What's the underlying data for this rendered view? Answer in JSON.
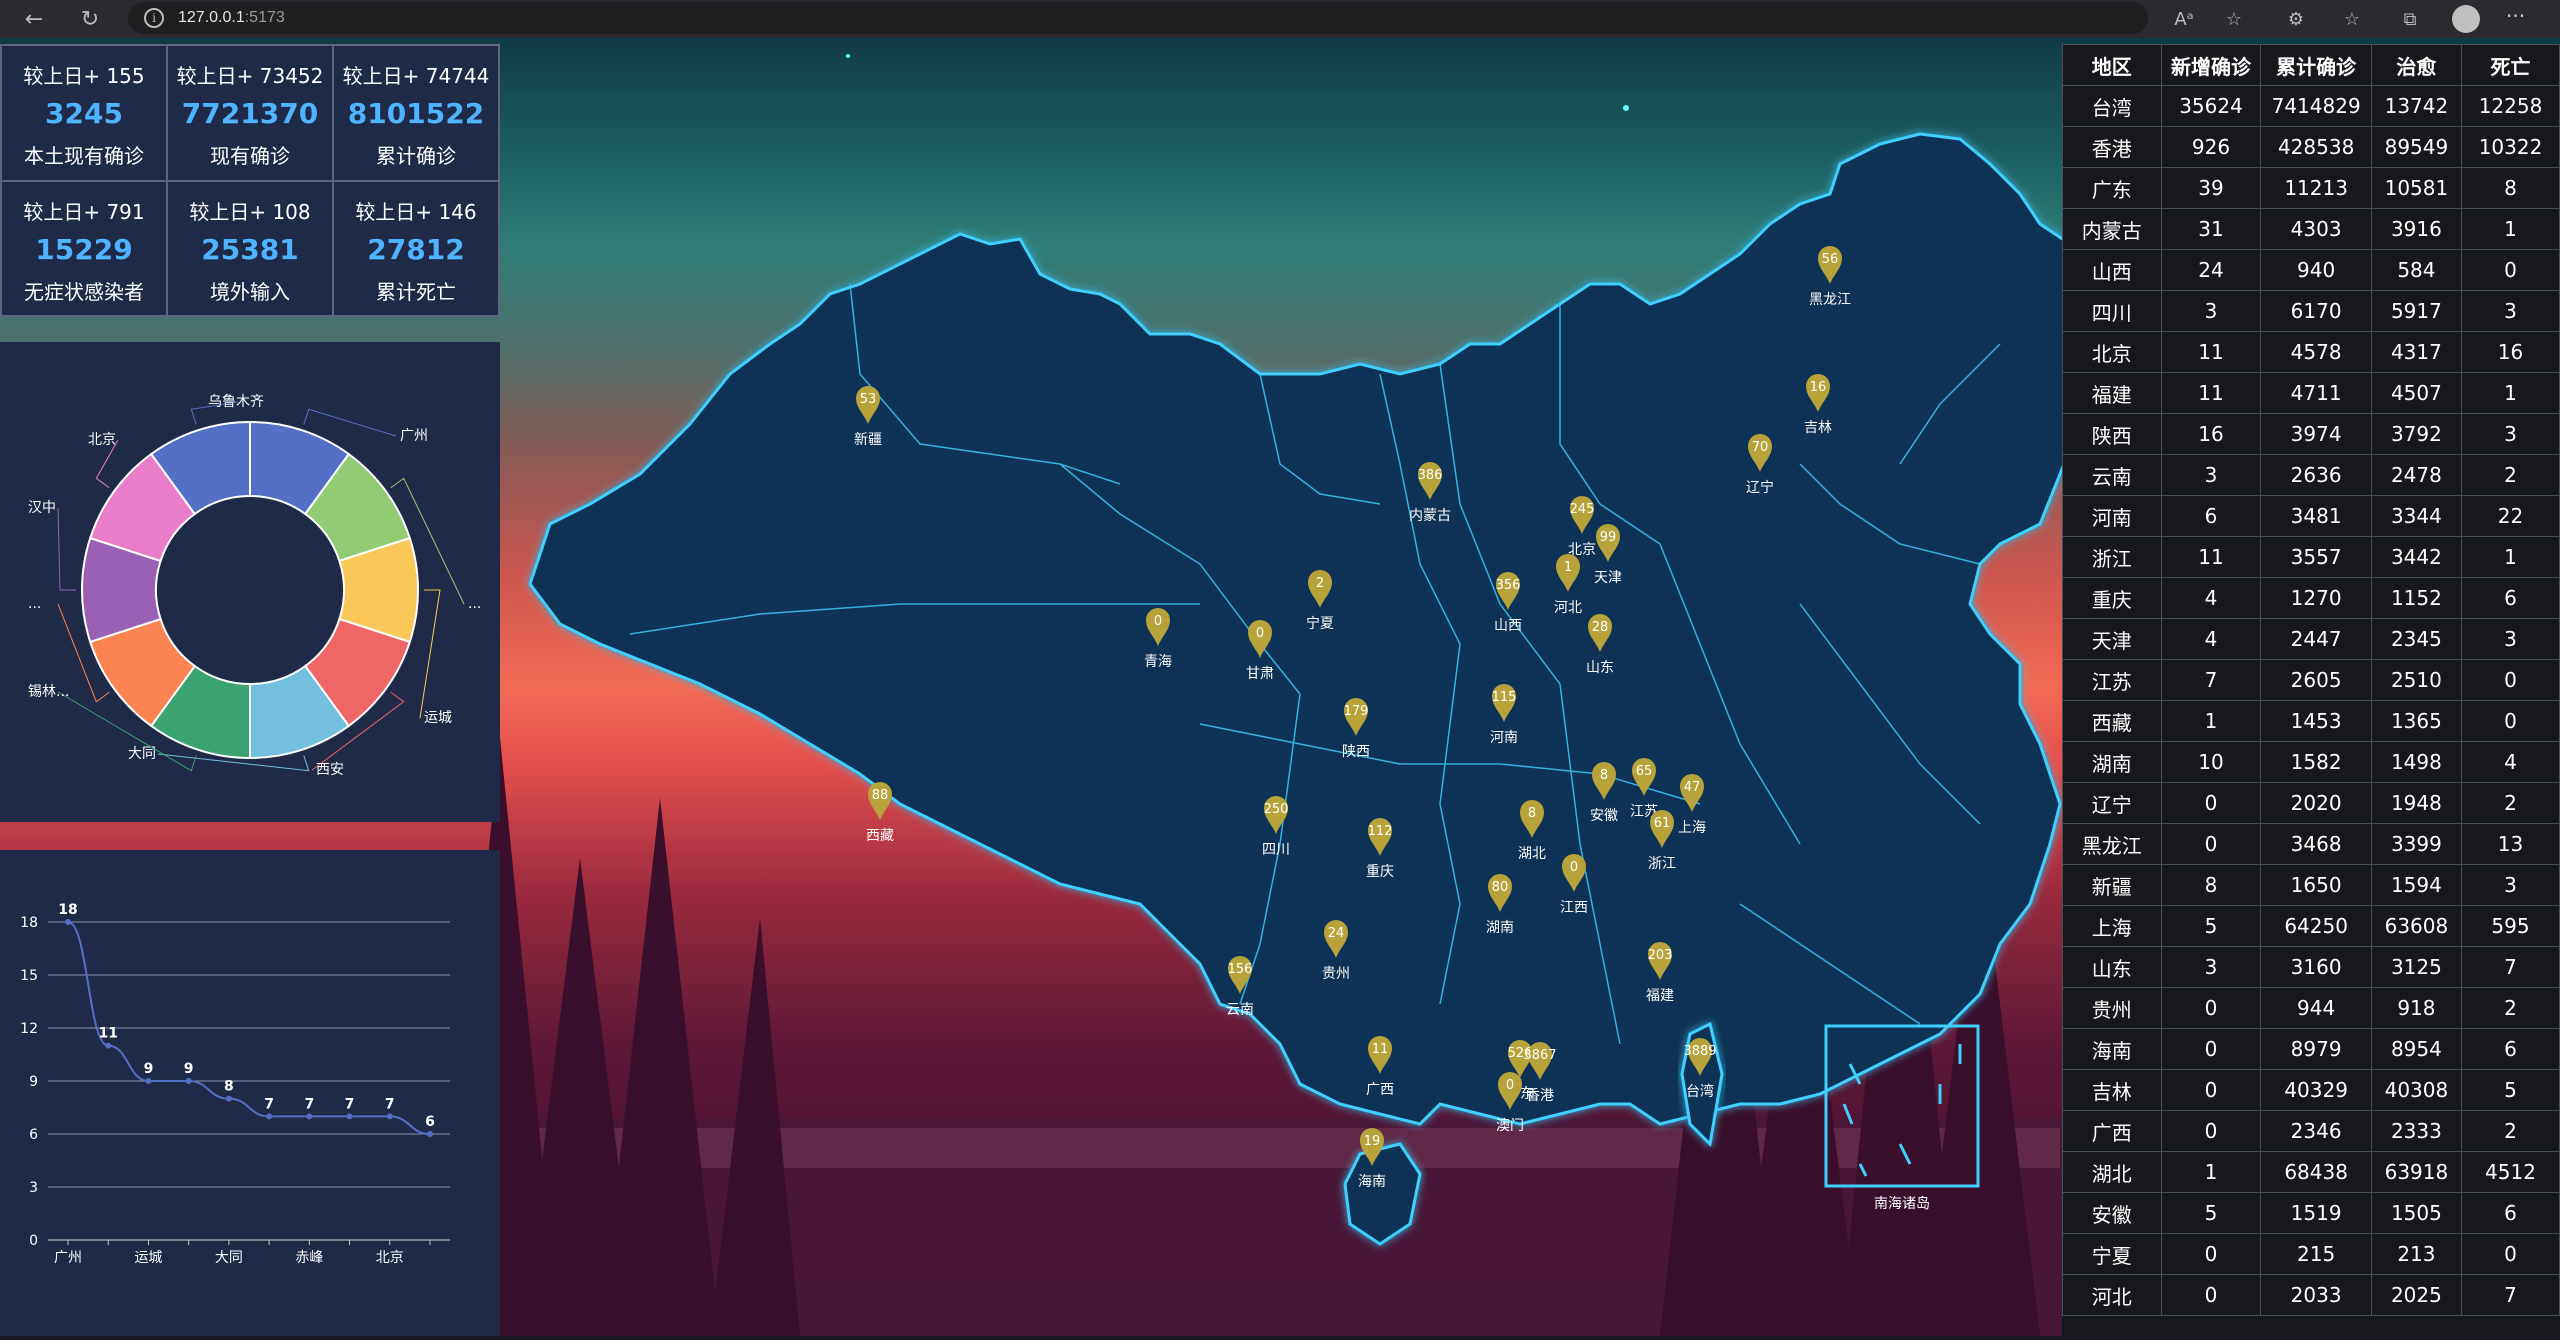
{
  "browser": {
    "url_host": "127.0.0.1",
    "url_port": ":5173"
  },
  "stats": [
    {
      "delta": "较上日+ 155",
      "value": "3245",
      "label": "本土现有确诊"
    },
    {
      "delta": "较上日+ 73452",
      "value": "7721370",
      "label": "现有确诊"
    },
    {
      "delta": "较上日+ 74744",
      "value": "8101522",
      "label": "累计确诊"
    },
    {
      "delta": "较上日+ 791",
      "value": "15229",
      "label": "无症状感染者"
    },
    {
      "delta": "较上日+ 108",
      "value": "25381",
      "label": "境外输入"
    },
    {
      "delta": "较上日+ 146",
      "value": "27812",
      "label": "累计死亡"
    }
  ],
  "donut": {
    "labels": [
      "广州",
      "...",
      "运城",
      "西安",
      "大同",
      "锡林...",
      "...",
      "汉中",
      "北京",
      "乌鲁木齐"
    ],
    "colors": [
      "#5470c6",
      "#91cc75",
      "#fac858",
      "#ee6666",
      "#73c0de",
      "#3ba272",
      "#fc8452",
      "#9a60b4",
      "#ea7ccc",
      "#5470c6"
    ]
  },
  "chart_data": {
    "type": "line",
    "categories": [
      "广州",
      "",
      "运城",
      "",
      "大同",
      "",
      "赤峰",
      "",
      "北京",
      ""
    ],
    "tick_labels": [
      "广州",
      "运城",
      "大同",
      "赤峰",
      "北京"
    ],
    "values": [
      18,
      11,
      9,
      9,
      8,
      7,
      7,
      7,
      7,
      6
    ],
    "ylim": [
      0,
      18
    ],
    "yticks": [
      0,
      3,
      6,
      9,
      12,
      15,
      18
    ],
    "color": "#5470c6"
  },
  "map": {
    "provinces": [
      {
        "name": "新疆",
        "pin": "53"
      },
      {
        "name": "西藏",
        "pin": "88"
      },
      {
        "name": "青海",
        "pin": "0"
      },
      {
        "name": "甘肃",
        "pin": "0"
      },
      {
        "name": "内蒙古",
        "pin": "386"
      },
      {
        "name": "黑龙江",
        "pin": "56"
      },
      {
        "name": "吉林",
        "pin": "16"
      },
      {
        "name": "辽宁",
        "pin": "70"
      },
      {
        "name": "北京",
        "pin": "245"
      },
      {
        "name": "天津",
        "pin": "99"
      },
      {
        "name": "河北",
        "pin": "1"
      },
      {
        "name": "山西",
        "pin": "356"
      },
      {
        "name": "山东",
        "pin": "28"
      },
      {
        "name": "宁夏",
        "pin": "2"
      },
      {
        "name": "陕西",
        "pin": "179"
      },
      {
        "name": "河南",
        "pin": "115"
      },
      {
        "name": "四川",
        "pin": "250"
      },
      {
        "name": "重庆",
        "pin": "112"
      },
      {
        "name": "湖北",
        "pin": "8"
      },
      {
        "name": "安徽",
        "pin": "8"
      },
      {
        "name": "江苏",
        "pin": "65"
      },
      {
        "name": "上海",
        "pin": "47"
      },
      {
        "name": "浙江",
        "pin": "61"
      },
      {
        "name": "江西",
        "pin": "0"
      },
      {
        "name": "湖南",
        "pin": "80"
      },
      {
        "name": "贵州",
        "pin": "24"
      },
      {
        "name": "云南",
        "pin": "156"
      },
      {
        "name": "广西",
        "pin": "11"
      },
      {
        "name": "广东",
        "pin": "526"
      },
      {
        "name": "福建",
        "pin": "203"
      },
      {
        "name": "台湾",
        "pin": "3889"
      },
      {
        "name": "香港",
        "pin": "3867"
      },
      {
        "name": "澳门",
        "pin": "0"
      },
      {
        "name": "海南",
        "pin": "19"
      }
    ],
    "inset_label": "南海诸岛"
  },
  "table": {
    "headers": [
      "地区",
      "新增确诊",
      "累计确诊",
      "治愈",
      "死亡"
    ],
    "rows": [
      [
        "台湾",
        "35624",
        "7414829",
        "13742",
        "12258"
      ],
      [
        "香港",
        "926",
        "428538",
        "89549",
        "10322"
      ],
      [
        "广东",
        "39",
        "11213",
        "10581",
        "8"
      ],
      [
        "内蒙古",
        "31",
        "4303",
        "3916",
        "1"
      ],
      [
        "山西",
        "24",
        "940",
        "584",
        "0"
      ],
      [
        "四川",
        "3",
        "6170",
        "5917",
        "3"
      ],
      [
        "北京",
        "11",
        "4578",
        "4317",
        "16"
      ],
      [
        "福建",
        "11",
        "4711",
        "4507",
        "1"
      ],
      [
        "陕西",
        "16",
        "3974",
        "3792",
        "3"
      ],
      [
        "云南",
        "3",
        "2636",
        "2478",
        "2"
      ],
      [
        "河南",
        "6",
        "3481",
        "3344",
        "22"
      ],
      [
        "浙江",
        "11",
        "3557",
        "3442",
        "1"
      ],
      [
        "重庆",
        "4",
        "1270",
        "1152",
        "6"
      ],
      [
        "天津",
        "4",
        "2447",
        "2345",
        "3"
      ],
      [
        "江苏",
        "7",
        "2605",
        "2510",
        "0"
      ],
      [
        "西藏",
        "1",
        "1453",
        "1365",
        "0"
      ],
      [
        "湖南",
        "10",
        "1582",
        "1498",
        "4"
      ],
      [
        "辽宁",
        "0",
        "2020",
        "1948",
        "2"
      ],
      [
        "黑龙江",
        "0",
        "3468",
        "3399",
        "13"
      ],
      [
        "新疆",
        "8",
        "1650",
        "1594",
        "3"
      ],
      [
        "上海",
        "5",
        "64250",
        "63608",
        "595"
      ],
      [
        "山东",
        "3",
        "3160",
        "3125",
        "7"
      ],
      [
        "贵州",
        "0",
        "944",
        "918",
        "2"
      ],
      [
        "海南",
        "0",
        "8979",
        "8954",
        "6"
      ],
      [
        "吉林",
        "0",
        "40329",
        "40308",
        "5"
      ],
      [
        "广西",
        "0",
        "2346",
        "2333",
        "2"
      ],
      [
        "湖北",
        "1",
        "68438",
        "63918",
        "4512"
      ],
      [
        "安徽",
        "5",
        "1519",
        "1505",
        "6"
      ],
      [
        "宁夏",
        "0",
        "215",
        "213",
        "0"
      ],
      [
        "河北",
        "0",
        "2033",
        "2025",
        "7"
      ]
    ]
  }
}
